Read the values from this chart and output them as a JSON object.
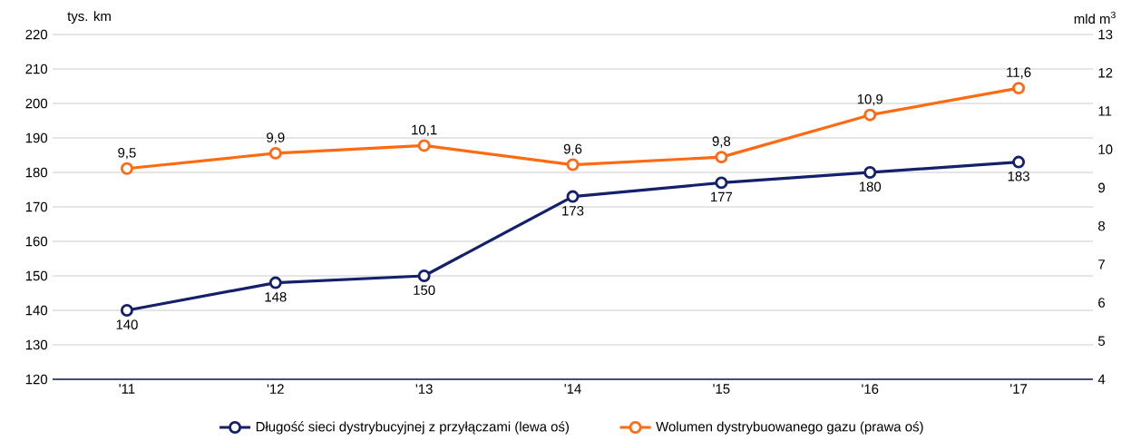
{
  "chart_data": {
    "type": "line",
    "ylabel": "tys. km",
    "y2label": "mld m$^{3}$",
    "categories": [
      "'11",
      "'12",
      "'13",
      "'14",
      "'15",
      "'16",
      "'17"
    ],
    "series": [
      {
        "name": "Długość sieci dystrybucyjnej z przyłączami (lewa oś)",
        "color": "#14206b",
        "values": [
          140,
          148,
          150,
          173,
          177,
          180,
          183
        ],
        "value_labels": [
          "140",
          "148",
          "150",
          "173",
          "177",
          "180",
          "183"
        ]
      },
      {
        "name": "Wolumen dystrybuowanego gazu (prawa oś)",
        "color": "#ff6a13",
        "axis": "y2",
        "values": [
          9.5,
          9.9,
          10.1,
          9.6,
          9.8,
          10.9,
          11.6
        ],
        "value_labels": [
          "9,5",
          "9,9",
          "10,1",
          "9,6",
          "9,8",
          "10,9",
          "11,6"
        ]
      }
    ],
    "ylim": [
      120,
      220
    ],
    "yticks": [
      120,
      130,
      140,
      150,
      160,
      170,
      180,
      190,
      200,
      210,
      220
    ],
    "y2lim": [
      4,
      13
    ],
    "y2ticks": [
      4,
      5,
      6,
      7,
      8,
      9,
      10,
      11,
      12,
      13
    ],
    "grid": "y",
    "legend": "bottom",
    "marker": "circle",
    "line_style": "solid"
  }
}
